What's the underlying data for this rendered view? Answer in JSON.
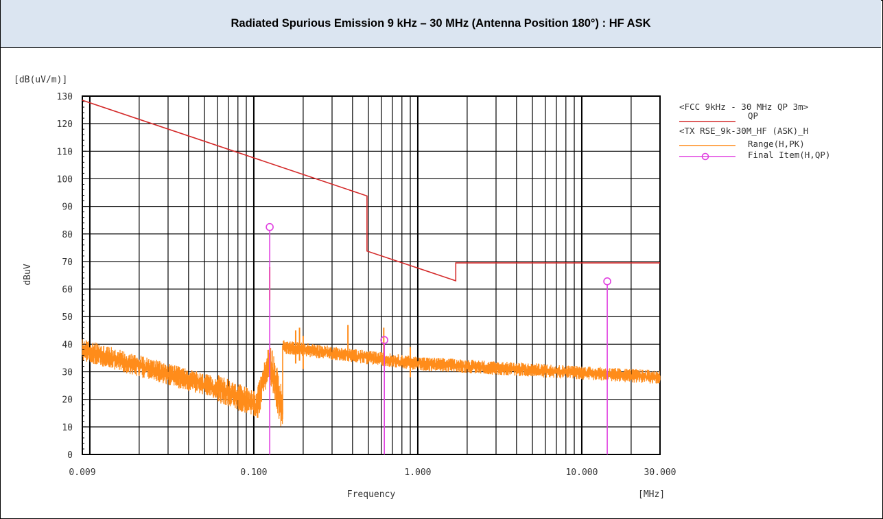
{
  "header": {
    "title": "Radiated Spurious Emission 9 kHz – 30 MHz (Antenna Position 180°) : HF ASK"
  },
  "chart_data": {
    "type": "line",
    "x_scale": "log",
    "xlim": [
      0.009,
      30
    ],
    "ylim": [
      0,
      130
    ],
    "y_unit_label": "[dB(uV/m)]",
    "ylabel": "dBuV",
    "xlabel": "Frequency",
    "x_unit_label": "[MHz]",
    "y_ticks": [
      "0",
      "10",
      "20",
      "30",
      "40",
      "50",
      "60",
      "70",
      "80",
      "90",
      "100",
      "110",
      "120",
      "130"
    ],
    "x_ticks": [
      {
        "value": 0.009,
        "label": "0.009"
      },
      {
        "value": 0.1,
        "label": "0.100"
      },
      {
        "value": 1,
        "label": "1.000"
      },
      {
        "value": 10,
        "label": "10.000"
      },
      {
        "value": 30,
        "label": "30.000"
      }
    ],
    "grid": true,
    "legend": {
      "placement": "right",
      "entries": [
        {
          "text": "<FCC 9kHz - 30 MHz QP 3m>",
          "kind": "header"
        },
        {
          "text": "QP",
          "kind": "line",
          "color": "#d42a2a"
        },
        {
          "text": "<TX RSE_9k-30M_HF (ASK)_H",
          "kind": "header"
        },
        {
          "text": "Range(H,PK)",
          "kind": "line",
          "color": "#ff8c1a"
        },
        {
          "text": "Final Item(H,QP)",
          "kind": "marker",
          "color": "#e040e0"
        }
      ]
    },
    "series": [
      {
        "name": "QP",
        "color": "#d42a2a",
        "points": [
          [
            0.009,
            128.5
          ],
          [
            0.49,
            93.8
          ],
          [
            0.49,
            73.8
          ],
          [
            1.705,
            63.0
          ],
          [
            1.705,
            69.5
          ],
          [
            30,
            69.5
          ]
        ]
      },
      {
        "name": "Range(H,PK)",
        "color": "#ff8c1a",
        "segments": [
          {
            "from": 0.009,
            "to": 0.06,
            "start": 38,
            "end": 24,
            "noise": 4
          },
          {
            "from": 0.06,
            "to": 0.105,
            "start": 24,
            "end": 18,
            "noise": 5
          },
          {
            "from": 0.105,
            "to": 0.125,
            "start": 18,
            "end": 35,
            "noise": 6
          },
          {
            "from": 0.125,
            "to": 0.15,
            "start": 35,
            "end": 15,
            "noise": 8
          },
          {
            "from": 0.15,
            "to": 1.0,
            "start": 39,
            "end": 33,
            "noise": 2.5
          },
          {
            "from": 1.0,
            "to": 30,
            "start": 33,
            "end": 28,
            "noise": 2.5
          }
        ],
        "spikes": [
          {
            "x": 0.125,
            "y": 68
          },
          {
            "x": 0.18,
            "y": 45
          },
          {
            "x": 0.19,
            "y": 46
          },
          {
            "x": 0.2,
            "y": 43
          },
          {
            "x": 0.375,
            "y": 47
          },
          {
            "x": 0.62,
            "y": 46
          },
          {
            "x": 0.9,
            "y": 39
          }
        ]
      },
      {
        "name": "Final Item(H,QP)",
        "color": "#e040e0",
        "points": [
          [
            0.125,
            82.5
          ],
          [
            0.625,
            41.5
          ],
          [
            14.3,
            62.8
          ]
        ]
      }
    ]
  }
}
